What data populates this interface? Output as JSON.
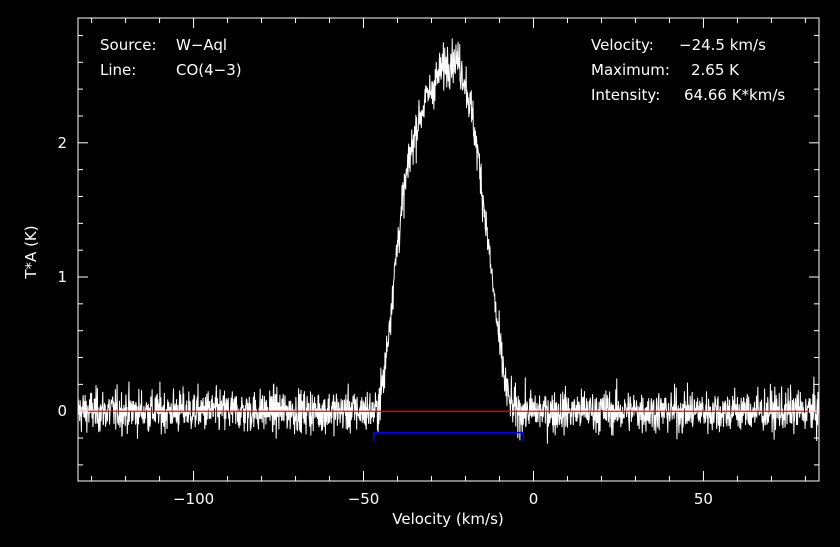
{
  "chart_data": {
    "type": "line",
    "title": "",
    "xlabel": "Velocity (km/s)",
    "ylabel": "T*A (K)",
    "xlim": [
      -134,
      84
    ],
    "ylim": [
      -0.52,
      2.93
    ],
    "x_ticks": [
      -100,
      -50,
      0,
      50
    ],
    "x_tick_labels": [
      "−100",
      "−50",
      "0",
      "50"
    ],
    "y_ticks": [
      0,
      1,
      2
    ],
    "y_tick_labels": [
      "0",
      "1",
      "2"
    ],
    "grid": false,
    "series": [
      {
        "color": "#ffffff",
        "noise_rms_K": 0.08,
        "x": [
          -134,
          -120,
          -100,
          -80,
          -60,
          -50,
          -46,
          -44,
          -42,
          -40,
          -38,
          -36,
          -34,
          -32,
          -30,
          -28,
          -26,
          -24,
          -22,
          -20,
          -18,
          -16,
          -14,
          -12,
          -10,
          -8,
          -6,
          -4,
          0,
          20,
          40,
          60,
          84
        ],
        "values": [
          0,
          0,
          0,
          0,
          0,
          0,
          0,
          0.25,
          0.75,
          1.25,
          1.65,
          1.95,
          2.15,
          2.3,
          2.4,
          2.5,
          2.58,
          2.63,
          2.6,
          2.45,
          2.2,
          1.85,
          1.4,
          0.95,
          0.5,
          0.15,
          0.02,
          0,
          0,
          0,
          0,
          0,
          0
        ]
      }
    ],
    "baseline": {
      "value": 0,
      "color": "#ff0000"
    },
    "window": {
      "x": [
        -47,
        -3
      ],
      "y": -0.16,
      "color": "#0000ff"
    }
  },
  "info_left": {
    "source_label": "Source:",
    "source_value": "W−Aql",
    "line_label": "Line:",
    "line_value": "CO(4−3)"
  },
  "info_right": {
    "velocity_label": "Velocity:",
    "velocity_value": "−24.5 km/s",
    "maximum_label": "Maximum:",
    "maximum_value": "2.65 K",
    "intensity_label": "Intensity:",
    "intensity_value": "64.66 K*km/s"
  }
}
